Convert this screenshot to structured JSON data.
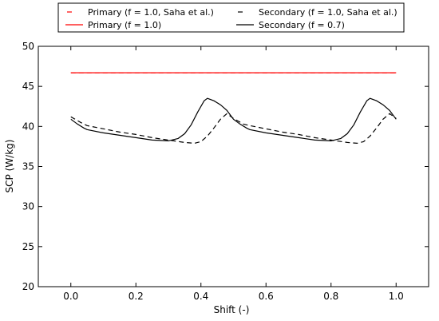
{
  "chart_data": {
    "type": "line",
    "xlabel": "Shift (-)",
    "ylabel": "SCP (W/kg)",
    "xlim": [
      -0.1,
      1.1
    ],
    "ylim": [
      20,
      50
    ],
    "xticks": [
      0.0,
      0.2,
      0.4,
      0.6,
      0.8,
      1.0
    ],
    "xtick_labels": [
      "0.0",
      "0.2",
      "0.4",
      "0.6",
      "0.8",
      "1.0"
    ],
    "yticks": [
      20,
      25,
      30,
      35,
      40,
      45,
      50
    ],
    "ytick_labels": [
      "20",
      "25",
      "30",
      "35",
      "40",
      "45",
      "50"
    ],
    "grid": false,
    "legend_position": "top, outside the plot, two columns",
    "series": [
      {
        "name": "Primary (f = 1.0, Saha et al.)",
        "color": "#ff0000",
        "dash": "dashed",
        "x": [
          0.0,
          1.0
        ],
        "y": [
          46.7,
          46.7
        ]
      },
      {
        "name": "Primary (f = 1.0)",
        "color": "#ff0000",
        "dash": "solid",
        "x": [
          0.0,
          1.0
        ],
        "y": [
          46.7,
          46.7
        ]
      },
      {
        "name": "Secondary (f = 1.0, Saha et al.)",
        "color": "#000000",
        "dash": "dashed",
        "x": [
          0.0,
          0.03,
          0.05,
          0.1,
          0.15,
          0.2,
          0.25,
          0.3,
          0.35,
          0.38,
          0.4,
          0.42,
          0.44,
          0.46,
          0.48,
          0.5,
          0.53,
          0.55,
          0.6,
          0.65,
          0.7,
          0.75,
          0.8,
          0.85,
          0.88,
          0.9,
          0.92,
          0.94,
          0.96,
          0.98,
          1.0
        ],
        "y": [
          41.2,
          40.5,
          40.1,
          39.7,
          39.3,
          39.0,
          38.6,
          38.3,
          38.0,
          37.9,
          38.1,
          38.8,
          39.8,
          40.9,
          41.6,
          41.0,
          40.3,
          40.1,
          39.7,
          39.3,
          39.0,
          38.6,
          38.3,
          38.0,
          37.9,
          38.1,
          38.8,
          39.8,
          40.9,
          41.6,
          41.0
        ]
      },
      {
        "name": "Secondary (f = 0.7)",
        "color": "#000000",
        "dash": "solid",
        "x": [
          0.0,
          0.02,
          0.04,
          0.05,
          0.1,
          0.15,
          0.2,
          0.25,
          0.3,
          0.33,
          0.35,
          0.37,
          0.39,
          0.41,
          0.42,
          0.44,
          0.46,
          0.48,
          0.5,
          0.52,
          0.54,
          0.55,
          0.6,
          0.65,
          0.7,
          0.75,
          0.8,
          0.83,
          0.85,
          0.87,
          0.89,
          0.91,
          0.92,
          0.94,
          0.96,
          0.98,
          1.0
        ],
        "y": [
          40.9,
          40.3,
          39.8,
          39.6,
          39.2,
          38.9,
          38.6,
          38.3,
          38.2,
          38.5,
          39.1,
          40.2,
          41.8,
          43.2,
          43.5,
          43.2,
          42.7,
          42.0,
          40.9,
          40.3,
          39.8,
          39.6,
          39.2,
          38.9,
          38.6,
          38.3,
          38.2,
          38.5,
          39.1,
          40.2,
          41.8,
          43.2,
          43.5,
          43.2,
          42.7,
          42.0,
          40.9
        ]
      }
    ]
  }
}
